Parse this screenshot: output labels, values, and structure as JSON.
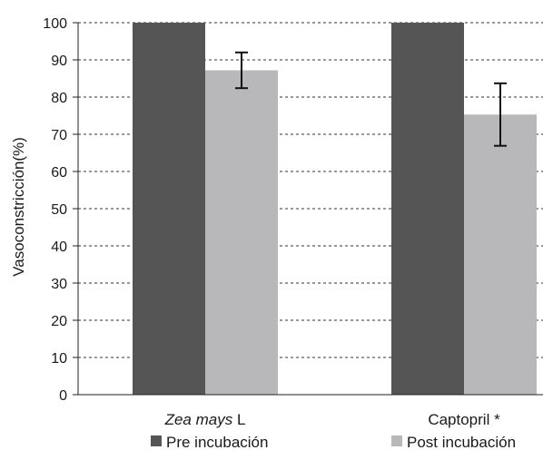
{
  "chart_data": {
    "type": "bar",
    "ylabel": "Vasoconstricción(%)",
    "ylim": [
      0,
      100
    ],
    "yticks": [
      0,
      10,
      20,
      30,
      40,
      50,
      60,
      70,
      80,
      90,
      100
    ],
    "grid": true,
    "legend_position": "bottom",
    "categories": [
      {
        "text": "Zea mays",
        "suffix": " L",
        "italic_part": "Zea mays"
      },
      {
        "text": "Captopril *",
        "suffix": "",
        "italic_part": ""
      }
    ],
    "series": [
      {
        "name": "Pre incubación",
        "color": "#555555",
        "values": [
          100,
          100
        ]
      },
      {
        "name": "Post incubación",
        "color": "#b8b8ba",
        "values": [
          87.2,
          75.3
        ],
        "error": [
          4.8,
          8.4
        ]
      }
    ]
  }
}
